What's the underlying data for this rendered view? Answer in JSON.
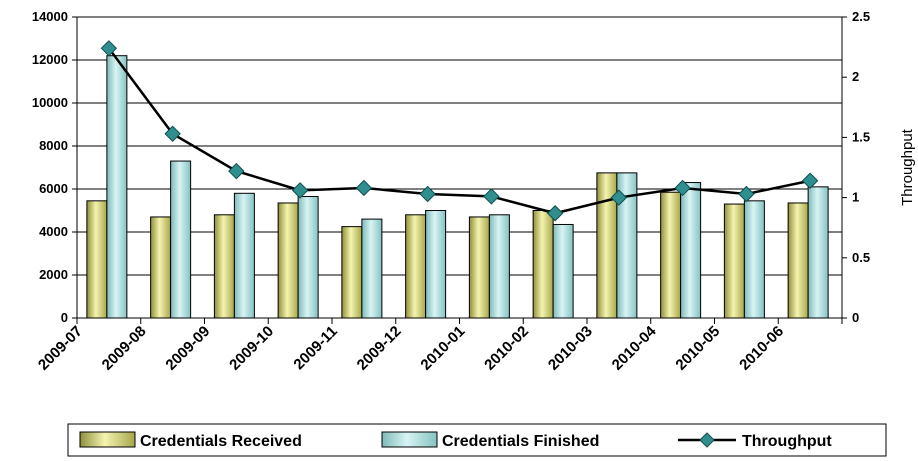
{
  "chart_data": {
    "type": "bar",
    "categories": [
      "2009-07",
      "2009-08",
      "2009-09",
      "2009-10",
      "2009-11",
      "2009-12",
      "2010-01",
      "2010-02",
      "2010-03",
      "2010-04",
      "2010-05",
      "2010-06"
    ],
    "series": [
      {
        "name": "Credentials Received",
        "type": "bar",
        "axis": "left",
        "color": "#f2f2a8",
        "values": [
          5450,
          4700,
          4800,
          5350,
          4250,
          4800,
          4700,
          5000,
          6750,
          5850,
          5300,
          5350
        ]
      },
      {
        "name": "Credentials Finished",
        "type": "bar",
        "axis": "left",
        "color": "#bfeaea",
        "values": [
          12200,
          7300,
          5800,
          5650,
          4600,
          5000,
          4800,
          4350,
          6750,
          6300,
          5450,
          6100
        ]
      },
      {
        "name": "Throughput",
        "type": "line",
        "axis": "right",
        "color": "#2f8f8f",
        "values": [
          2.24,
          1.53,
          1.22,
          1.06,
          1.08,
          1.03,
          1.01,
          0.87,
          1.0,
          1.08,
          1.03,
          1.14
        ]
      }
    ],
    "ylim": [
      0,
      14000
    ],
    "yticks": [
      0,
      2000,
      4000,
      6000,
      8000,
      10000,
      12000,
      14000
    ],
    "y2lim": [
      0,
      2.5
    ],
    "y2ticks": [
      "0",
      "0.5",
      "1",
      "1.5",
      "2",
      "2.5"
    ],
    "xlabel": "",
    "ylabel": "",
    "y2label": "Throughput",
    "grid": "horizontal",
    "legend": "bottom"
  }
}
